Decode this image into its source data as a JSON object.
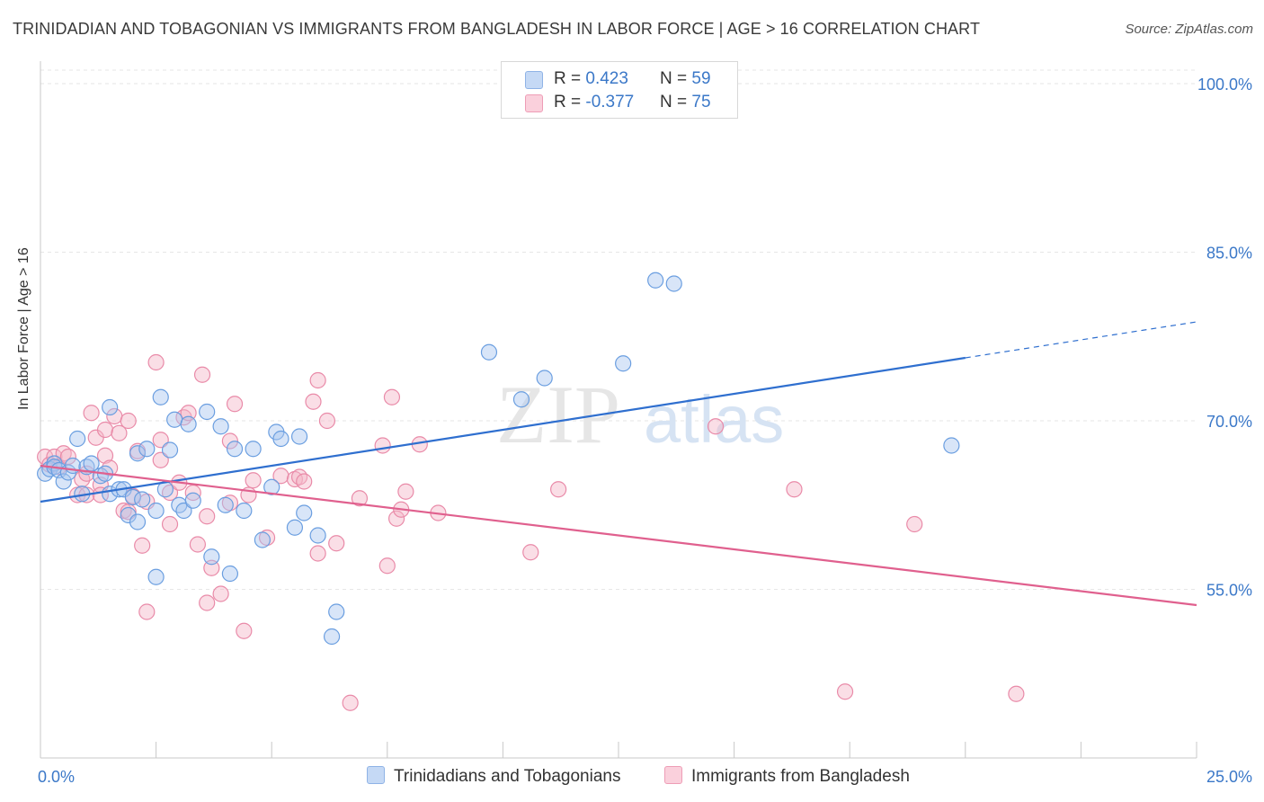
{
  "title": "TRINIDADIAN AND TOBAGONIAN VS IMMIGRANTS FROM BANGLADESH IN LABOR FORCE | AGE > 16 CORRELATION CHART",
  "source": "Source: ZipAtlas.com",
  "watermark": {
    "zip": "ZIP",
    "atlas": "atlas"
  },
  "legend_top": {
    "rows": [
      {
        "r_label": "R = ",
        "r_value": "0.423",
        "n_label": "N = ",
        "n_value": "59",
        "color": "#a9c6ef"
      },
      {
        "r_label": "R = ",
        "r_value": "-0.377",
        "n_label": "N = ",
        "n_value": "75",
        "color": "#f5b6c8"
      }
    ]
  },
  "chart_data": {
    "type": "scatter",
    "ylabel": "In Labor Force | Age > 16",
    "xlim": [
      0,
      25
    ],
    "ylim": [
      40,
      102
    ],
    "x_tick_labels": [
      "0.0%",
      "25.0%"
    ],
    "y_ticks": [
      {
        "value": 100,
        "label": "100.0%"
      },
      {
        "value": 85,
        "label": "85.0%"
      },
      {
        "value": 70,
        "label": "70.0%"
      },
      {
        "value": 55,
        "label": "55.0%"
      }
    ],
    "grid": true,
    "legend_position": "bottom",
    "series": [
      {
        "name": "Trinidadians and Tobagonians",
        "color": "#6a9ee0",
        "fill": "#a9c6ef",
        "line_color": "#2f6fcf",
        "trend": {
          "x0": 0,
          "y0": 62.8,
          "x1": 20,
          "y1": 75.6,
          "x_dash_end": 25,
          "y_dash_end": 78.8
        },
        "points": [
          [
            0.1,
            65.3
          ],
          [
            0.2,
            65.7
          ],
          [
            0.3,
            66.2
          ],
          [
            0.3,
            65.9
          ],
          [
            0.4,
            65.6
          ],
          [
            0.5,
            64.6
          ],
          [
            0.6,
            65.4
          ],
          [
            0.7,
            66.0
          ],
          [
            0.8,
            68.4
          ],
          [
            0.9,
            63.5
          ],
          [
            1.0,
            65.9
          ],
          [
            1.1,
            66.2
          ],
          [
            1.3,
            65.1
          ],
          [
            1.4,
            65.3
          ],
          [
            1.5,
            63.5
          ],
          [
            1.5,
            71.2
          ],
          [
            1.7,
            63.9
          ],
          [
            1.8,
            63.9
          ],
          [
            1.9,
            61.6
          ],
          [
            2.0,
            63.2
          ],
          [
            2.1,
            61.0
          ],
          [
            2.1,
            67.1
          ],
          [
            2.2,
            63.0
          ],
          [
            2.3,
            67.5
          ],
          [
            2.5,
            62.0
          ],
          [
            2.5,
            56.1
          ],
          [
            2.6,
            72.1
          ],
          [
            2.7,
            63.9
          ],
          [
            2.8,
            67.4
          ],
          [
            2.9,
            70.1
          ],
          [
            3.0,
            62.5
          ],
          [
            3.1,
            62.0
          ],
          [
            3.2,
            69.7
          ],
          [
            3.3,
            62.9
          ],
          [
            3.6,
            70.8
          ],
          [
            3.7,
            57.9
          ],
          [
            3.9,
            69.5
          ],
          [
            4.0,
            62.5
          ],
          [
            4.1,
            56.4
          ],
          [
            4.2,
            67.5
          ],
          [
            4.4,
            62.0
          ],
          [
            4.6,
            67.5
          ],
          [
            4.8,
            59.4
          ],
          [
            5.0,
            64.1
          ],
          [
            5.1,
            69.0
          ],
          [
            5.2,
            68.4
          ],
          [
            5.5,
            60.5
          ],
          [
            5.6,
            68.6
          ],
          [
            5.7,
            61.8
          ],
          [
            6.0,
            59.8
          ],
          [
            6.4,
            53.0
          ],
          [
            6.3,
            50.8
          ],
          [
            9.7,
            76.1
          ],
          [
            10.4,
            71.9
          ],
          [
            10.9,
            73.8
          ],
          [
            12.6,
            75.1
          ],
          [
            13.3,
            82.5
          ],
          [
            13.7,
            82.2
          ],
          [
            19.7,
            67.8
          ]
        ]
      },
      {
        "name": "Immigrants from Bangladesh",
        "color": "#e98aa8",
        "fill": "#f5b6c8",
        "line_color": "#e0608e",
        "trend": {
          "x0": 0,
          "y0": 66.0,
          "x1": 25,
          "y1": 53.6
        },
        "points": [
          [
            0.1,
            66.8
          ],
          [
            0.2,
            66.1
          ],
          [
            0.3,
            66.8
          ],
          [
            0.4,
            65.9
          ],
          [
            0.5,
            67.1
          ],
          [
            0.6,
            66.8
          ],
          [
            0.8,
            63.4
          ],
          [
            0.9,
            64.8
          ],
          [
            1.0,
            65.3
          ],
          [
            1.0,
            63.4
          ],
          [
            1.1,
            70.7
          ],
          [
            1.2,
            68.5
          ],
          [
            1.3,
            64.3
          ],
          [
            1.3,
            63.4
          ],
          [
            1.4,
            66.9
          ],
          [
            1.4,
            69.2
          ],
          [
            1.5,
            65.8
          ],
          [
            1.6,
            70.4
          ],
          [
            1.7,
            68.9
          ],
          [
            1.8,
            62.0
          ],
          [
            1.9,
            61.9
          ],
          [
            1.9,
            70.0
          ],
          [
            2.0,
            63.3
          ],
          [
            2.1,
            67.3
          ],
          [
            2.2,
            58.9
          ],
          [
            2.3,
            53.0
          ],
          [
            2.3,
            62.8
          ],
          [
            2.5,
            75.2
          ],
          [
            2.6,
            66.5
          ],
          [
            2.6,
            68.3
          ],
          [
            2.8,
            63.6
          ],
          [
            2.8,
            60.8
          ],
          [
            3.0,
            64.5
          ],
          [
            3.1,
            70.3
          ],
          [
            3.2,
            70.7
          ],
          [
            3.3,
            63.6
          ],
          [
            3.4,
            59.0
          ],
          [
            3.5,
            74.1
          ],
          [
            3.6,
            53.8
          ],
          [
            3.6,
            61.5
          ],
          [
            3.7,
            56.9
          ],
          [
            3.9,
            54.6
          ],
          [
            4.1,
            62.7
          ],
          [
            4.1,
            68.2
          ],
          [
            4.2,
            71.5
          ],
          [
            4.4,
            51.3
          ],
          [
            4.5,
            63.4
          ],
          [
            4.6,
            64.7
          ],
          [
            4.9,
            59.6
          ],
          [
            5.2,
            65.1
          ],
          [
            5.5,
            64.8
          ],
          [
            5.6,
            65.0
          ],
          [
            5.7,
            64.6
          ],
          [
            5.9,
            71.7
          ],
          [
            6.0,
            73.6
          ],
          [
            6.0,
            58.2
          ],
          [
            6.2,
            70.0
          ],
          [
            6.4,
            59.1
          ],
          [
            6.7,
            44.9
          ],
          [
            6.9,
            63.1
          ],
          [
            7.4,
            67.8
          ],
          [
            7.5,
            57.1
          ],
          [
            7.6,
            72.1
          ],
          [
            7.7,
            61.3
          ],
          [
            7.8,
            62.1
          ],
          [
            7.9,
            63.7
          ],
          [
            8.2,
            67.9
          ],
          [
            8.6,
            61.8
          ],
          [
            10.6,
            58.3
          ],
          [
            11.2,
            63.9
          ],
          [
            14.6,
            69.5
          ],
          [
            16.3,
            63.9
          ],
          [
            17.4,
            45.9
          ],
          [
            18.9,
            60.8
          ],
          [
            21.1,
            45.7
          ]
        ]
      }
    ]
  }
}
